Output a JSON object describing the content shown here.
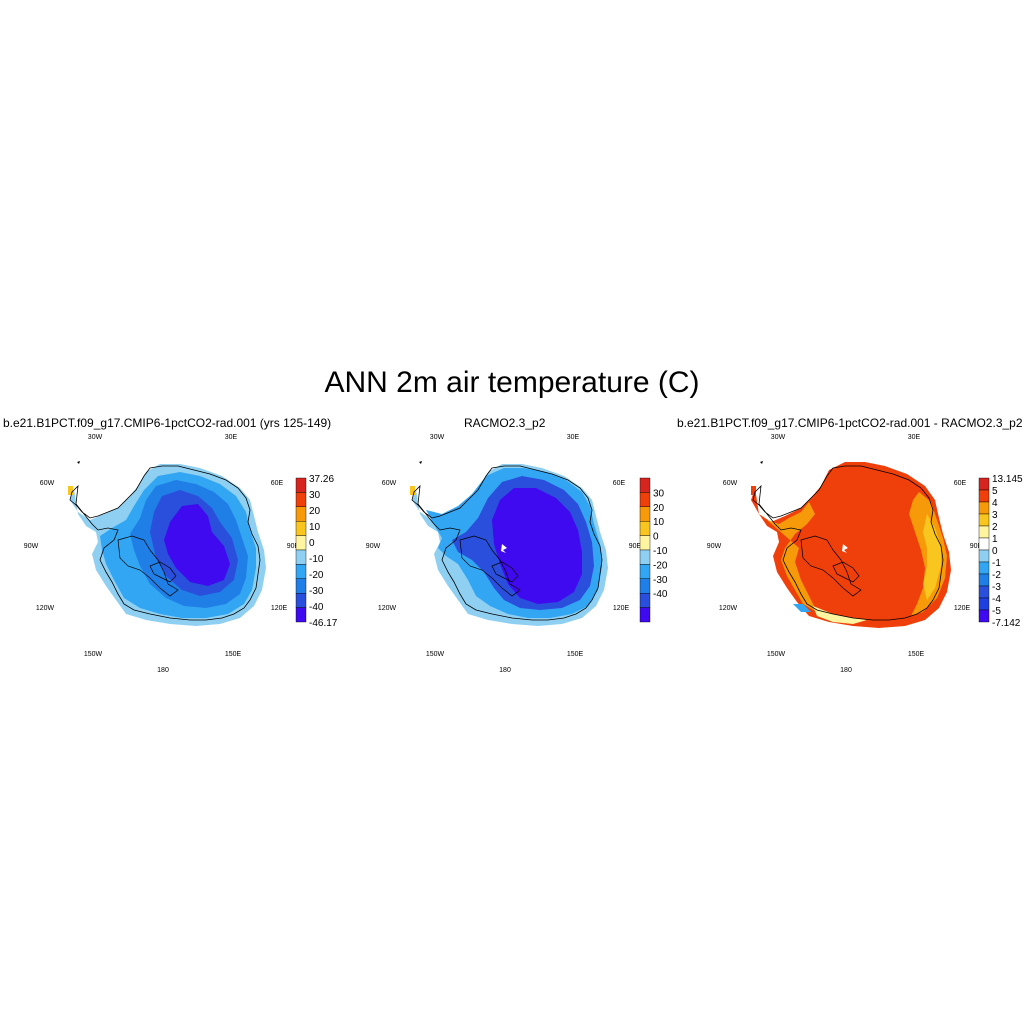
{
  "title": "ANN 2m air temperature (C)",
  "colors": {
    "temp_scale": [
      "#3f0af0",
      "#2a4fdc",
      "#1f7fe6",
      "#32a6f3",
      "#8fd0f2",
      "#fff4a0",
      "#f9c61f",
      "#f79a0a",
      "#ef3f0a",
      "#d7241e"
    ],
    "diff_scale": [
      "#3f0af0",
      "#2a4fdc",
      "#1f7fe6",
      "#32a6f3",
      "#8fd0f2",
      "#ffffff",
      "#fff4a0",
      "#f9c61f",
      "#f79a0a",
      "#ef3f0a",
      "#d7241e"
    ],
    "coast": "#000000"
  },
  "lon_labels": [
    "30W",
    "30E",
    "60W",
    "60E",
    "90W",
    "90E",
    "120W",
    "120E",
    "150W",
    "150E",
    "180"
  ],
  "panels": [
    {
      "title": "b.e21.B1PCT.f09_g17.CMIP6-1pctCO2-rad.001 (yrs 125-149)",
      "colorbar": {
        "labels": [
          "37.26",
          "30",
          "20",
          "10",
          "0",
          "-10",
          "-20",
          "-30",
          "-40",
          "-46.17"
        ],
        "show_endpoint_labels": true
      }
    },
    {
      "title": "RACMO2.3_p2",
      "colorbar": {
        "labels": [
          "30",
          "20",
          "10",
          "0",
          "-10",
          "-20",
          "-30",
          "-40"
        ],
        "show_endpoint_labels": false
      }
    },
    {
      "title": "b.e21.B1PCT.f09_g17.CMIP6-1pctCO2-rad.001 - RACMO2.3_p2",
      "colorbar": {
        "labels": [
          "13.145",
          "5",
          "4",
          "3",
          "2",
          "1",
          "0",
          "-1",
          "-2",
          "-3",
          "-4",
          "-5",
          "-7.142"
        ],
        "show_endpoint_labels": true
      }
    }
  ]
}
